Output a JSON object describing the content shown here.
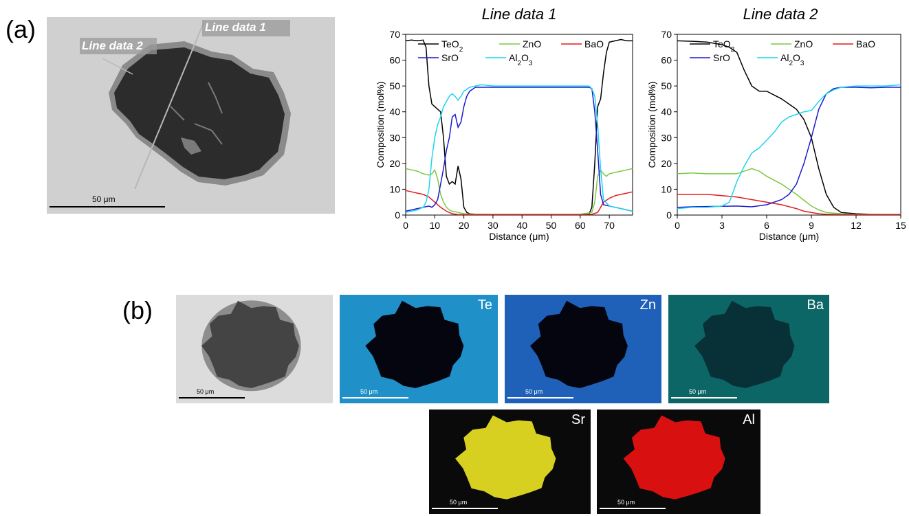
{
  "panel_a": {
    "label": "(a)",
    "sem": {
      "line1_label": "Line data 1",
      "line2_label": "Line data 2",
      "scale_label": "50 μm"
    }
  },
  "panel_b": {
    "label": "(b)",
    "maps": [
      {
        "element": "",
        "scale_label": "50 μm",
        "color": "#9a9a9a"
      },
      {
        "element": "Te",
        "scale_label": "50 μm",
        "color": "#1f90c8"
      },
      {
        "element": "Zn",
        "scale_label": "50 μm",
        "color": "#1f60b8"
      },
      {
        "element": "Ba",
        "scale_label": "50 μm",
        "color": "#0d6666"
      },
      {
        "element": "Sr",
        "scale_label": "50 μm",
        "color": "#d8d020"
      },
      {
        "element": "Al",
        "scale_label": "50 μm",
        "color": "#d81010"
      }
    ]
  },
  "chart_data": [
    {
      "type": "line",
      "title": "Line data 1",
      "xlabel": "Distance (μm)",
      "ylabel": "Composition (mol%)",
      "xlim": [
        0,
        78
      ],
      "ylim": [
        0,
        70
      ],
      "xticks": [
        0,
        10,
        20,
        30,
        40,
        50,
        60,
        70
      ],
      "yticks": [
        0,
        10,
        20,
        30,
        40,
        50,
        60,
        70
      ],
      "legend_position": "top",
      "series": [
        {
          "name": "TeO2",
          "color": "#000000",
          "x": [
            0,
            2,
            4,
            6,
            7,
            8,
            9,
            10,
            12,
            13,
            14,
            15,
            16,
            17,
            18,
            19,
            20,
            21,
            22,
            24,
            30,
            40,
            50,
            60,
            63,
            64,
            65,
            66,
            67,
            68,
            69,
            70,
            72,
            74,
            76,
            78
          ],
          "y": [
            67.5,
            67.8,
            67.5,
            67.8,
            65,
            50,
            43,
            42,
            40,
            30,
            15,
            12,
            13,
            12,
            19,
            14,
            3,
            1,
            0.5,
            0.3,
            0.2,
            0.2,
            0.2,
            0.2,
            0.3,
            3,
            20,
            42,
            45,
            55,
            63,
            67,
            67.5,
            68,
            67.5,
            67.5
          ]
        },
        {
          "name": "ZnO",
          "color": "#7ac943",
          "x": [
            0,
            2,
            4,
            6,
            8,
            9,
            10,
            11,
            12,
            13,
            14,
            15,
            16,
            18,
            20,
            25,
            40,
            60,
            64,
            65,
            66,
            67,
            68,
            69,
            70,
            72,
            74,
            76,
            78
          ],
          "y": [
            18,
            17.5,
            17,
            16,
            15.5,
            16,
            17.5,
            14,
            8,
            5,
            3,
            2,
            1.5,
            1,
            0.5,
            0.3,
            0.3,
            0.3,
            1,
            5,
            15,
            17.5,
            16,
            15,
            16,
            16.5,
            17,
            17.5,
            18
          ]
        },
        {
          "name": "BaO",
          "color": "#e41a1c",
          "x": [
            0,
            2,
            4,
            6,
            8,
            10,
            12,
            14,
            16,
            18,
            20,
            30,
            40,
            50,
            60,
            64,
            66,
            67,
            68,
            70,
            72,
            74,
            76,
            78
          ],
          "y": [
            9.5,
            9,
            8.5,
            8,
            7,
            5,
            3,
            1.5,
            0.5,
            0.2,
            0.2,
            0.2,
            0.2,
            0.2,
            0.2,
            0.3,
            1,
            3,
            5,
            6.5,
            7.5,
            8,
            8.5,
            9
          ]
        },
        {
          "name": "SrO",
          "color": "#1a1ad0",
          "x": [
            0,
            2,
            4,
            6,
            8,
            9,
            10,
            11,
            12,
            13,
            14,
            15,
            16,
            17,
            18,
            19,
            20,
            21,
            22,
            24,
            26,
            30,
            40,
            50,
            60,
            63,
            64,
            65,
            66,
            67,
            68,
            70,
            72,
            74,
            76,
            78
          ],
          "y": [
            1.5,
            2,
            2.5,
            3,
            3.5,
            3,
            4,
            6,
            12,
            18,
            25,
            30,
            38,
            39,
            34,
            36,
            42,
            46,
            48,
            49.5,
            49.5,
            49.5,
            49.5,
            49.5,
            49.5,
            49.5,
            49,
            40,
            25,
            8,
            4,
            3.5,
            3,
            2.5,
            2,
            1.5
          ]
        },
        {
          "name": "Al2O3",
          "color": "#1ad6ee",
          "x": [
            0,
            2,
            4,
            6,
            7,
            8,
            9,
            10,
            11,
            12,
            13,
            14,
            15,
            16,
            17,
            18,
            19,
            20,
            22,
            24,
            26,
            30,
            40,
            50,
            60,
            63,
            64,
            65,
            66,
            67,
            68,
            70,
            72,
            74,
            76,
            78
          ],
          "y": [
            1,
            1.5,
            2,
            3,
            5,
            10,
            22,
            30,
            35,
            38,
            42,
            44,
            46,
            47,
            46,
            44.5,
            46,
            48,
            49.5,
            50,
            50.5,
            50,
            50,
            50,
            50,
            50,
            49,
            46,
            35,
            18,
            6,
            3.5,
            3,
            2.5,
            2,
            1.5
          ]
        }
      ]
    },
    {
      "type": "line",
      "title": "Line data 2",
      "xlabel": "Distance (μm)",
      "ylabel": "Composition (mol%)",
      "xlim": [
        0,
        15
      ],
      "ylim": [
        0,
        70
      ],
      "xticks": [
        0,
        3,
        6,
        9,
        12,
        15
      ],
      "yticks": [
        0,
        10,
        20,
        30,
        40,
        50,
        60,
        70
      ],
      "legend_position": "top",
      "series": [
        {
          "name": "TeO2",
          "color": "#000000",
          "x": [
            0,
            1,
            2,
            3,
            3.5,
            4,
            4.5,
            5,
            5.5,
            6,
            7,
            8,
            8.5,
            9,
            9.5,
            10,
            10.5,
            11,
            12,
            13,
            14,
            15
          ],
          "y": [
            67.5,
            67.3,
            67,
            66,
            65,
            63,
            56,
            50,
            48,
            48,
            45,
            41,
            37,
            30,
            18,
            8,
            3,
            1,
            0.5,
            0.3,
            0.2,
            0.2
          ]
        },
        {
          "name": "ZnO",
          "color": "#7ac943",
          "x": [
            0,
            1,
            2,
            3,
            4,
            4.5,
            5,
            5.5,
            6,
            7,
            8,
            9,
            9.5,
            10,
            11,
            12,
            13,
            14,
            15
          ],
          "y": [
            16,
            16.3,
            16,
            16,
            16,
            17,
            18,
            17,
            15,
            12,
            8,
            3.5,
            2,
            1,
            0.5,
            0.3,
            0.3,
            0.3,
            0.3
          ]
        },
        {
          "name": "BaO",
          "color": "#e41a1c",
          "x": [
            0,
            1,
            2,
            3,
            4,
            5,
            6,
            7,
            8,
            8.5,
            9,
            9.5,
            10,
            11,
            12,
            13,
            14,
            15
          ],
          "y": [
            8,
            8,
            8,
            7.5,
            7,
            6,
            5,
            4,
            2.5,
            1.5,
            1,
            0.5,
            0.3,
            0.2,
            0.2,
            0.2,
            0.2,
            0.2
          ]
        },
        {
          "name": "SrO",
          "color": "#1a1ad0",
          "x": [
            0,
            1,
            2,
            3,
            4,
            5,
            6,
            7,
            7.5,
            8,
            8.5,
            9,
            9.5,
            10,
            10.5,
            11,
            12,
            13,
            14,
            15
          ],
          "y": [
            3,
            3.2,
            3.3,
            3.4,
            3.5,
            3.2,
            4,
            6,
            8,
            12,
            20,
            30,
            41,
            47,
            49,
            49.5,
            49.5,
            49.3,
            49.5,
            49.5
          ]
        },
        {
          "name": "Al2O3",
          "color": "#1ad6ee",
          "x": [
            0,
            1,
            2,
            3,
            3.5,
            4,
            4.5,
            5,
            5.5,
            6,
            6.5,
            7,
            7.5,
            8,
            8.5,
            9,
            9.5,
            10,
            10.5,
            11,
            12,
            13,
            14,
            15
          ],
          "y": [
            2.5,
            3,
            3,
            3.5,
            5,
            13,
            19,
            24,
            26,
            29,
            32,
            36,
            38,
            39,
            40,
            40.5,
            44,
            47,
            48.5,
            49.5,
            50,
            50,
            50,
            50.5
          ]
        }
      ]
    }
  ]
}
